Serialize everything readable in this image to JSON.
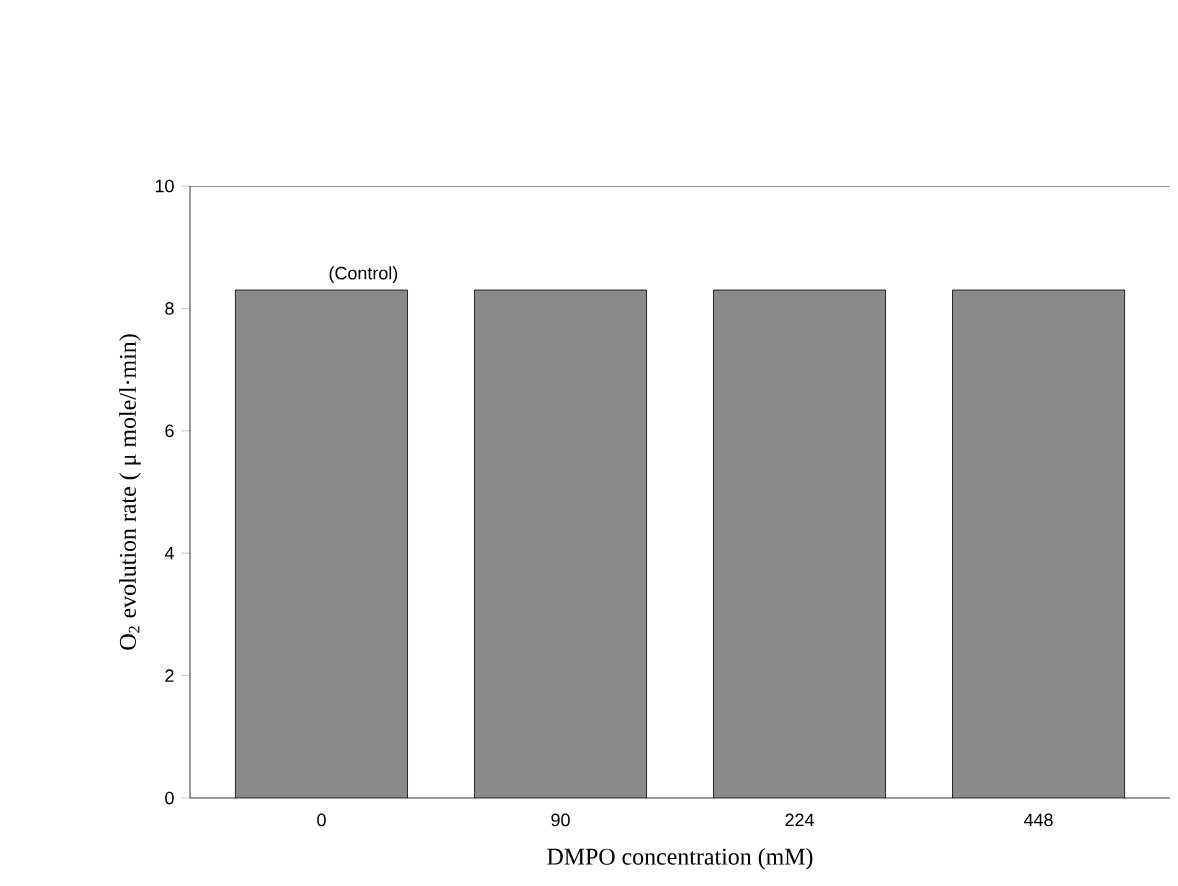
{
  "chart_data": {
    "type": "bar",
    "categories": [
      "0",
      "90",
      "224",
      "448"
    ],
    "values": [
      8.3,
      8.3,
      8.3,
      8.3
    ],
    "color": "#8a8a8a",
    "xlabel": "DMPO concentration (mM)",
    "ylabel": "O$_{2}$ evolution rate ( μ mole/l·min)",
    "ylim": [
      0,
      10
    ],
    "yticks": [
      0,
      2,
      4,
      6,
      8,
      10
    ],
    "annotations": [
      {
        "text": "(Control)",
        "x": "0",
        "y": 8.3
      }
    ]
  }
}
